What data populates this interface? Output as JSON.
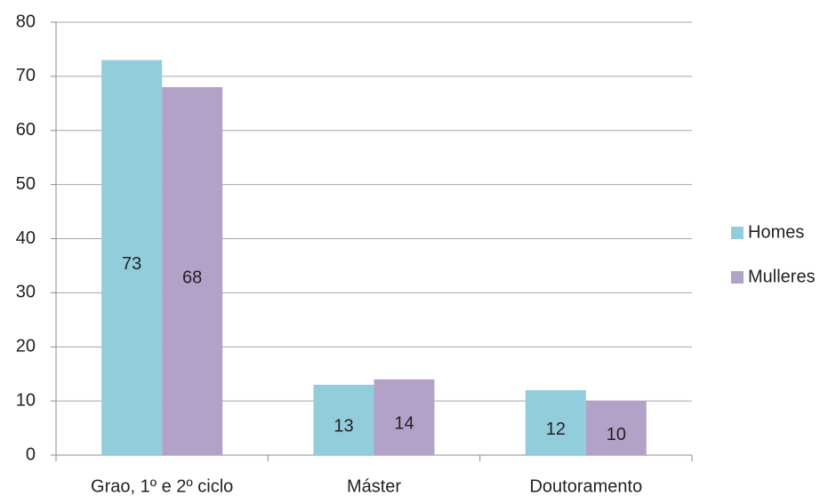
{
  "chart_data": {
    "type": "bar",
    "categories": [
      "Grao, 1º e 2º ciclo",
      "Máster",
      "Doutoramento"
    ],
    "series": [
      {
        "name": "Homes",
        "color": "#92cddc",
        "values": [
          73,
          13,
          12
        ]
      },
      {
        "name": "Mulleres",
        "color": "#b3a2c7",
        "values": [
          68,
          14,
          10
        ]
      }
    ],
    "ylim": [
      0,
      80
    ],
    "yticks": [
      0,
      10,
      20,
      30,
      40,
      50,
      60,
      70,
      80
    ],
    "grid": true,
    "legend": "right",
    "data_labels": true
  }
}
